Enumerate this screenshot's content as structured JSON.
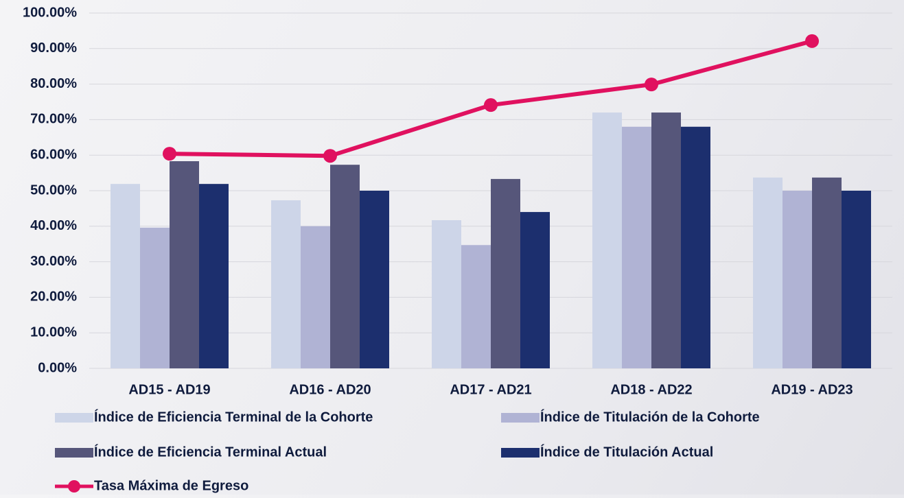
{
  "chart_data": {
    "type": "bar",
    "categories": [
      "AD15 - AD19",
      "AD16 - AD20",
      "AD17 - AD21",
      "AD18 - AD22",
      "AD19 - AD23"
    ],
    "series": [
      {
        "name": "Índice de Eficiencia Terminal de la Cohorte",
        "color": "#cdd5e8",
        "type": "bar",
        "values": [
          51.9,
          47.3,
          41.7,
          72.0,
          53.7
        ]
      },
      {
        "name": "Índice de Titulación de la Cohorte",
        "color": "#b0b3d4",
        "type": "bar",
        "values": [
          39.6,
          40.0,
          34.7,
          68.0,
          50.0
        ]
      },
      {
        "name": "Índice de Eficiencia Terminal Actual",
        "color": "#56567a",
        "type": "bar",
        "values": [
          58.3,
          57.3,
          53.3,
          72.0,
          53.7
        ]
      },
      {
        "name": "Índice de Titulación Actual",
        "color": "#1c2f6e",
        "type": "bar",
        "values": [
          51.9,
          50.0,
          44.0,
          68.0,
          50.0
        ]
      },
      {
        "name": "Tasa Máxima de Egreso",
        "color": "#e0115f",
        "type": "line",
        "values": [
          60.4,
          59.8,
          74.1,
          79.9,
          92.1
        ]
      }
    ],
    "ylim": [
      0,
      100
    ],
    "yticks": [
      {
        "value": 0,
        "label": "0.00%"
      },
      {
        "value": 10,
        "label": "10.00%"
      },
      {
        "value": 20,
        "label": "20.00%"
      },
      {
        "value": 30,
        "label": "30.00%"
      },
      {
        "value": 40,
        "label": "40.00%"
      },
      {
        "value": 50,
        "label": "50.00%"
      },
      {
        "value": 60,
        "label": "60.00%"
      },
      {
        "value": 70,
        "label": "70.00%"
      },
      {
        "value": 80,
        "label": "80.00%"
      },
      {
        "value": 90,
        "label": "90.00%"
      },
      {
        "value": 100,
        "label": "100.00%"
      }
    ],
    "grid": true
  }
}
